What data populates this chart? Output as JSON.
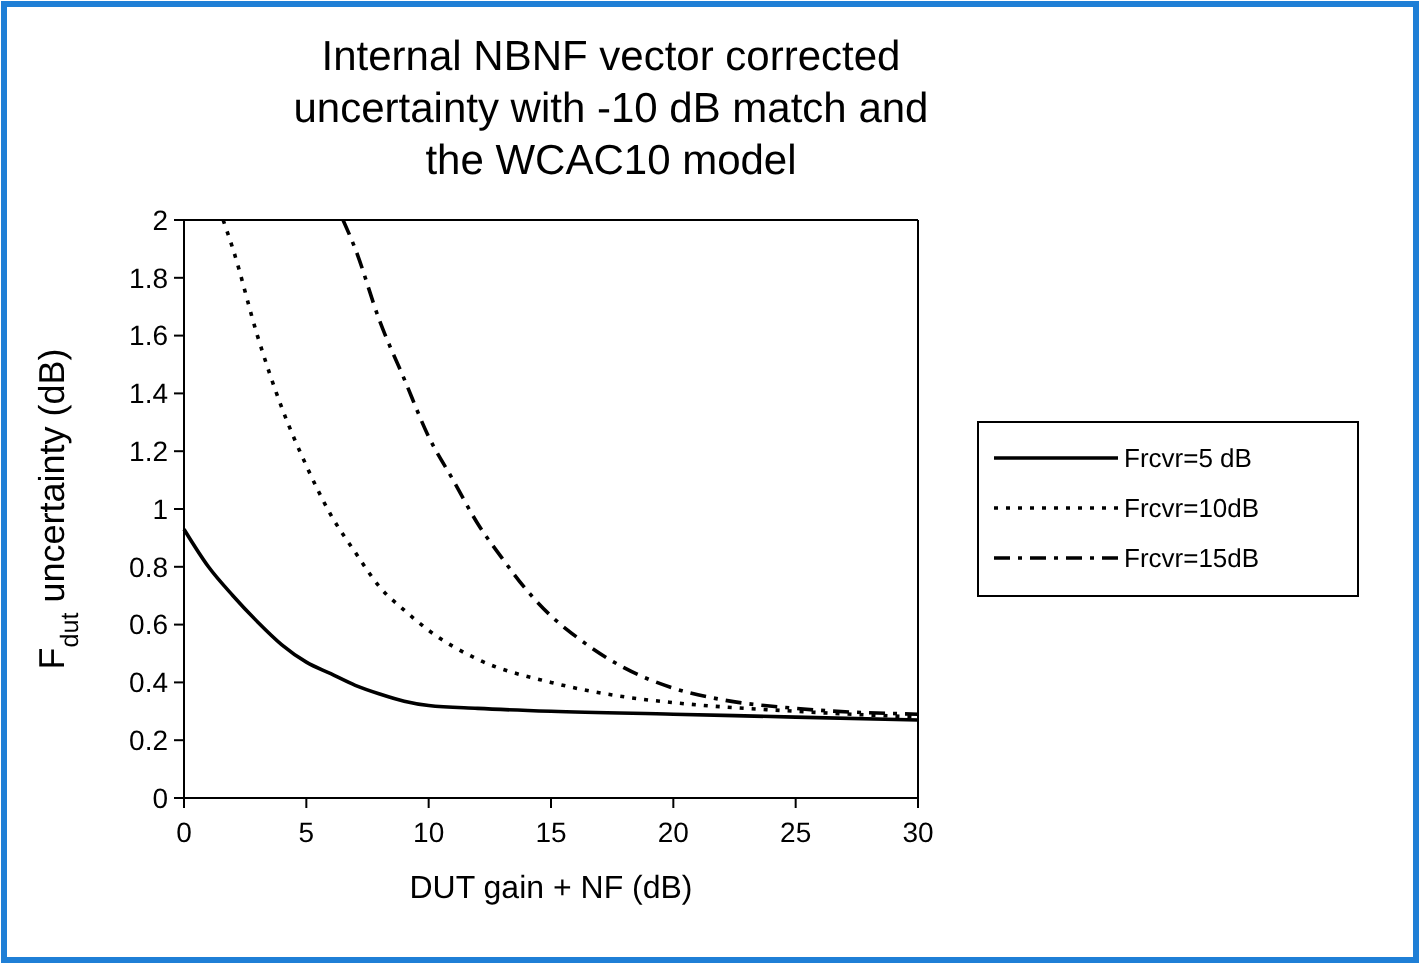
{
  "chart_data": {
    "type": "line",
    "title": "Internal NBNF vector corrected uncertainty with -10 dB match and the WCAC10 model",
    "xlabel": "DUT gain + NF (dB)",
    "ylabel": "F$_{dut}$ uncertainty (dB)",
    "xlim": [
      0,
      30
    ],
    "ylim": [
      0,
      2
    ],
    "xticks": [
      0,
      5,
      10,
      15,
      20,
      25,
      30
    ],
    "yticks": [
      0,
      0.2,
      0.4,
      0.6,
      0.8,
      1,
      1.2,
      1.4,
      1.6,
      1.8,
      2
    ],
    "legend": "right",
    "grid": false,
    "marker": "none",
    "series": [
      {
        "name": "Frcvr=5 dB",
        "color": "#000000",
        "line_style": "solid",
        "x": [
          0,
          1,
          2,
          3,
          4,
          5,
          6,
          7,
          8,
          9,
          10,
          12,
          15,
          20,
          25,
          30
        ],
        "values": [
          0.93,
          0.8,
          0.7,
          0.61,
          0.53,
          0.47,
          0.43,
          0.39,
          0.36,
          0.335,
          0.32,
          0.31,
          0.3,
          0.29,
          0.28,
          0.27
        ]
      },
      {
        "name": "Frcvr=10dB",
        "color": "#000000",
        "line_style": "dotted",
        "x": [
          1.6,
          2,
          3,
          4,
          5,
          6,
          7,
          8,
          9,
          10,
          12,
          15,
          18,
          20,
          25,
          30
        ],
        "values": [
          2,
          1.9,
          1.6,
          1.35,
          1.15,
          0.98,
          0.85,
          0.73,
          0.65,
          0.58,
          0.48,
          0.4,
          0.35,
          0.33,
          0.3,
          0.28
        ]
      },
      {
        "name": "Frcvr=15dB",
        "color": "#000000",
        "line_style": "dashdot",
        "x": [
          6.5,
          7,
          8,
          9,
          10,
          11,
          12,
          13,
          14,
          15,
          16,
          18,
          20,
          22,
          25,
          30
        ],
        "values": [
          2,
          1.9,
          1.65,
          1.45,
          1.25,
          1.1,
          0.95,
          0.83,
          0.72,
          0.63,
          0.56,
          0.45,
          0.38,
          0.34,
          0.31,
          0.29
        ]
      }
    ]
  }
}
